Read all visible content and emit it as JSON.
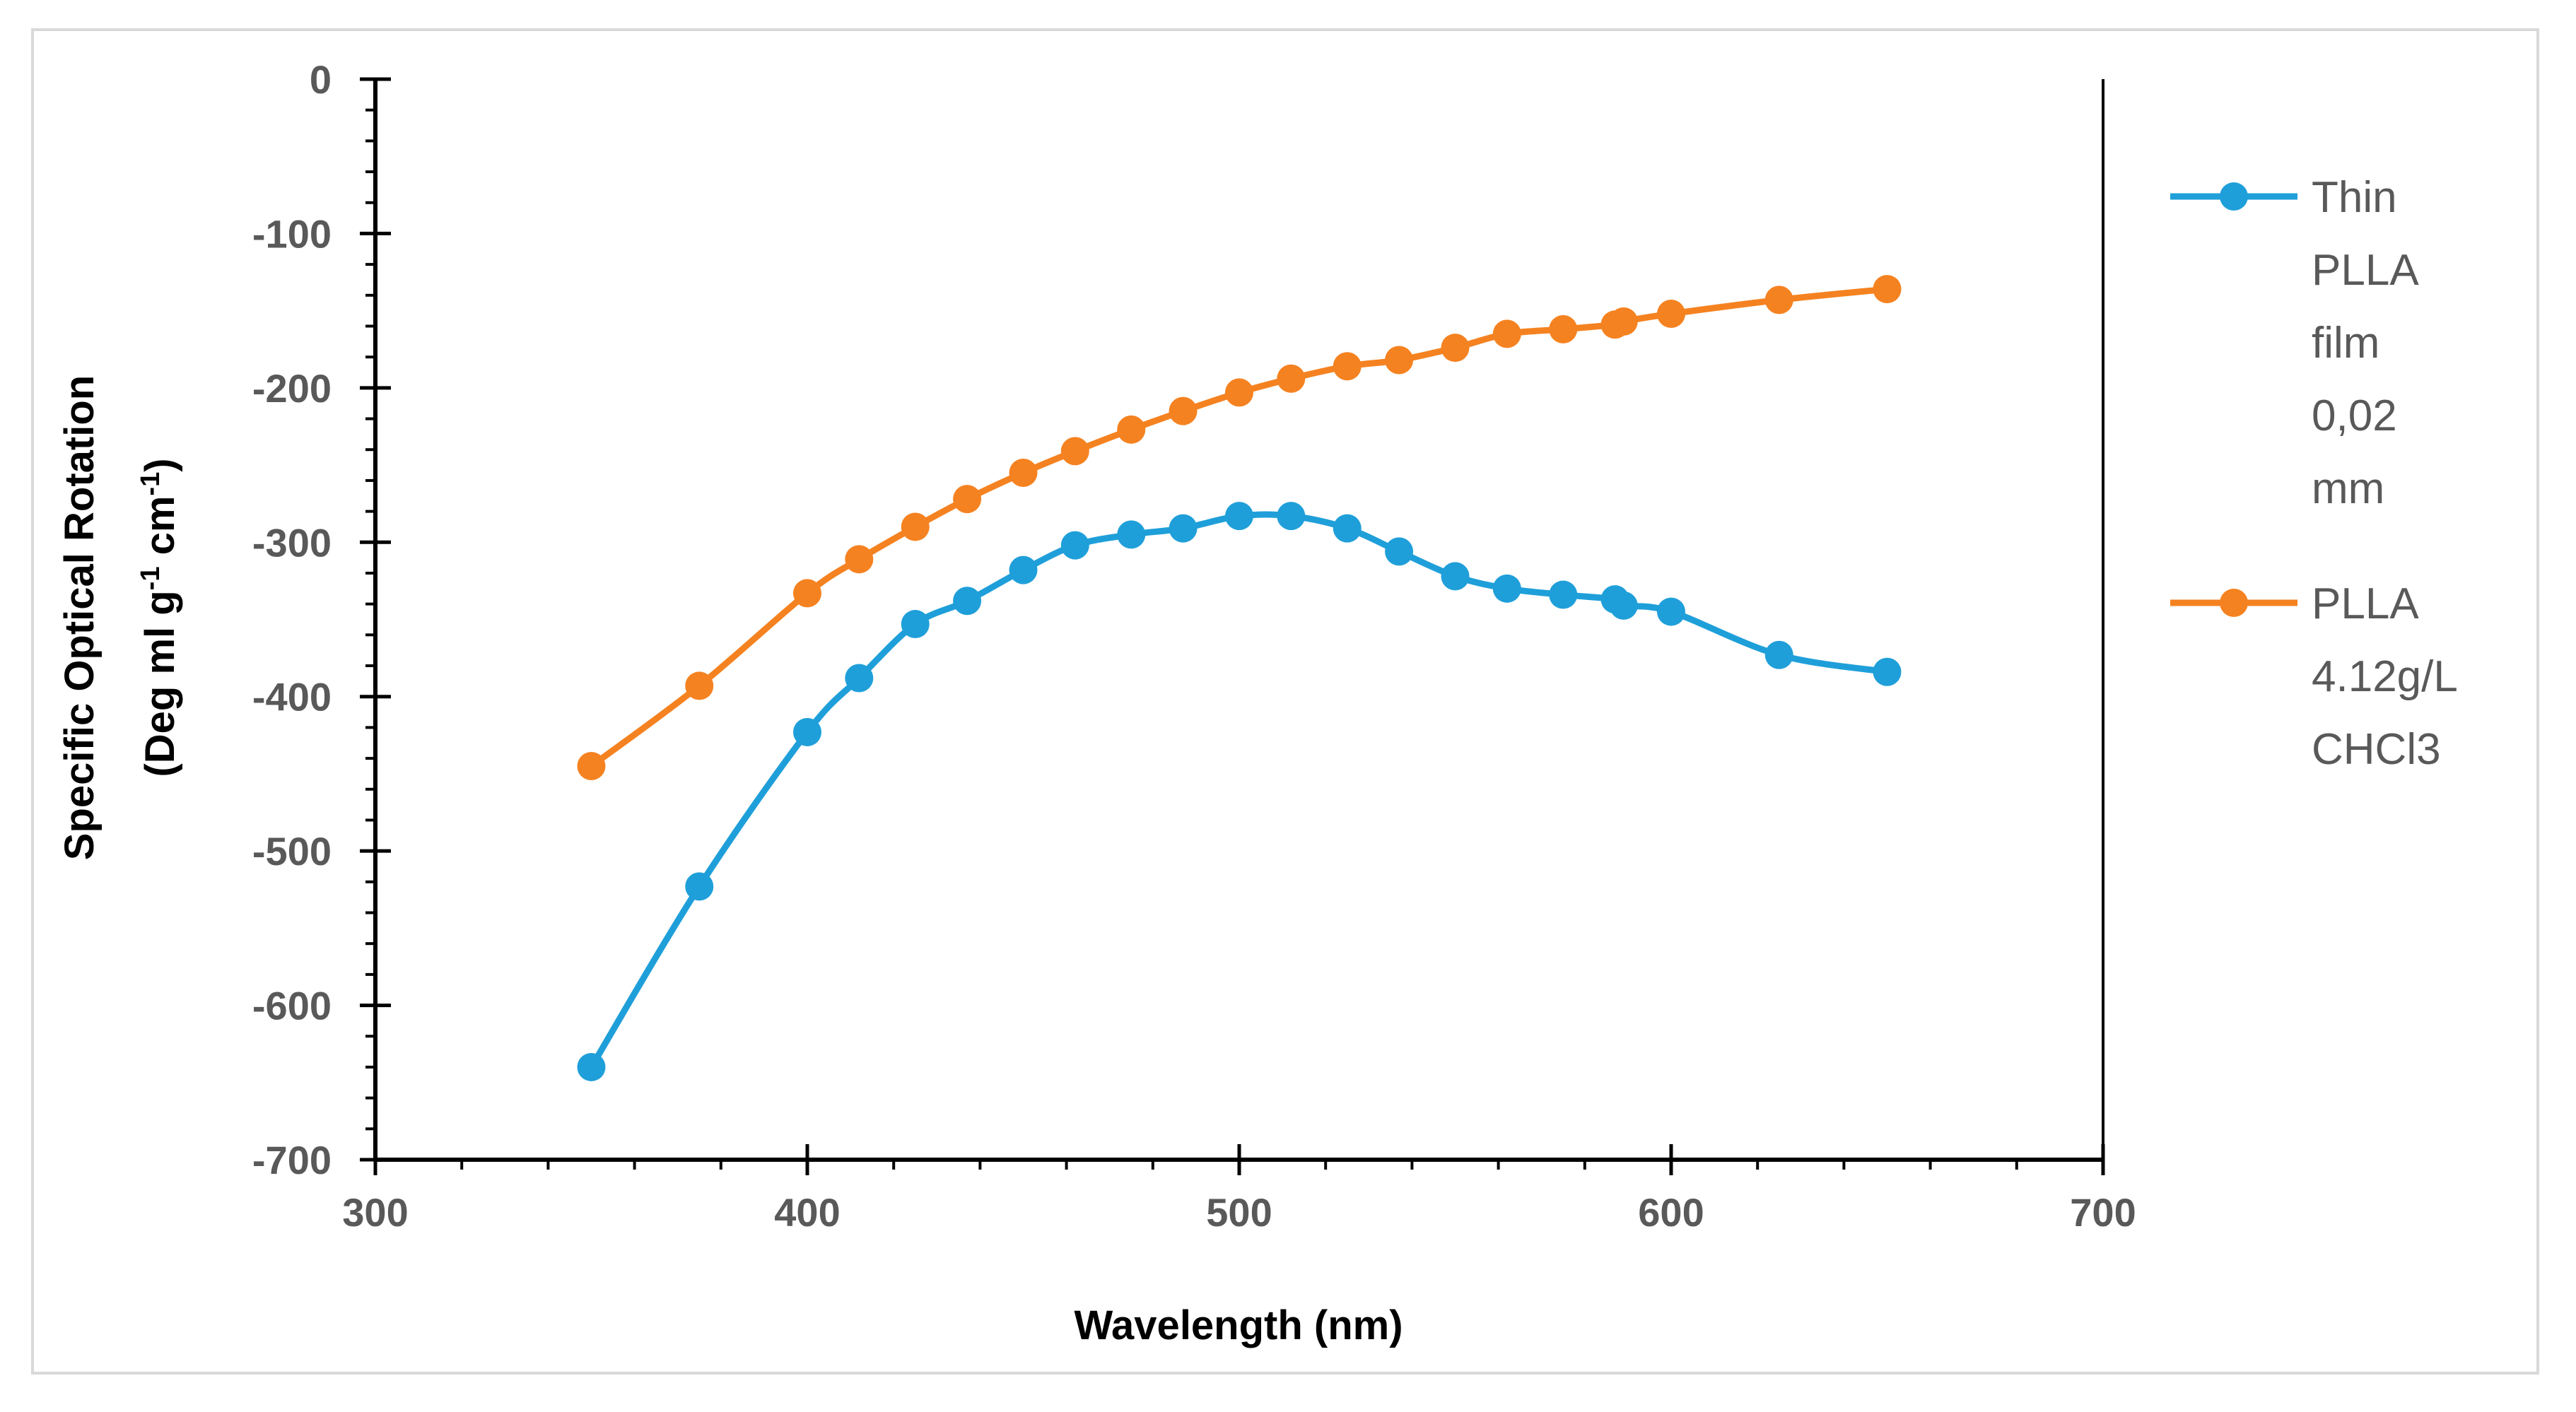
{
  "chart_data": {
    "type": "line",
    "title": "",
    "xlabel": "Wavelength (nm)",
    "ylabel": {
      "line1": "Specific Optical Rotation",
      "line2_prefix": "(Deg ml g",
      "sup1": "-1",
      "line2_mid": " cm",
      "sup2": "-1",
      "line2_suffix": ")"
    },
    "xlim": [
      300,
      700
    ],
    "ylim": [
      -700,
      0
    ],
    "x_ticks": [
      300,
      400,
      500,
      600,
      700
    ],
    "x_tick_labels": [
      "300",
      "400",
      "500",
      "600",
      "700"
    ],
    "y_ticks": [
      0,
      -100,
      -200,
      -300,
      -400,
      -500,
      -600,
      -700
    ],
    "y_tick_labels": [
      "0",
      "-100",
      "-200",
      "-300",
      "-400",
      "-500",
      "-600",
      "-700"
    ],
    "grid": false,
    "legend_position": "right",
    "series": [
      {
        "name": "Thin PLLA film 0,02 mm",
        "legend_lines": [
          "Thin",
          "PLLA",
          "film",
          "0,02",
          "mm"
        ],
        "color": "#1f9fd9",
        "x": [
          350,
          375,
          400,
          412,
          425,
          437,
          450,
          462,
          475,
          487,
          500,
          512,
          525,
          537,
          550,
          562,
          575,
          587,
          589,
          600,
          625,
          650
        ],
        "values": [
          -640,
          -523,
          -423,
          -388,
          -353,
          -338,
          -318,
          -302,
          -295,
          -291,
          -283,
          -283,
          -291,
          -306,
          -322,
          -330,
          -334,
          -337,
          -341,
          -345,
          -373,
          -384
        ]
      },
      {
        "name": "PLLA 4.12g/L CHCl3",
        "legend_lines": [
          "PLLA",
          "4.12g/L",
          "CHCl3"
        ],
        "color": "#f58220",
        "x": [
          350,
          375,
          400,
          412,
          425,
          437,
          450,
          462,
          475,
          487,
          500,
          512,
          525,
          537,
          550,
          562,
          575,
          587,
          589,
          600,
          625,
          650
        ],
        "values": [
          -445,
          -393,
          -333,
          -311,
          -290,
          -272,
          -255,
          -241,
          -227,
          -215,
          -203,
          -194,
          -186,
          -182,
          -174,
          -165,
          -162,
          -159,
          -157,
          -152,
          -143,
          -136
        ]
      }
    ]
  }
}
